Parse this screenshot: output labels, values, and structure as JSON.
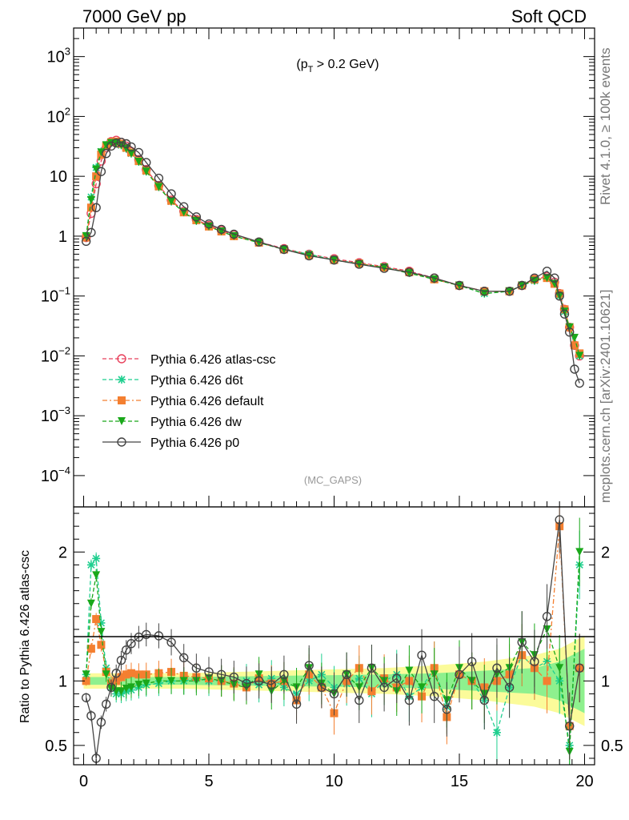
{
  "header": {
    "left_title": "7000 GeV pp",
    "right_title": "Soft QCD"
  },
  "side_labels": {
    "top": "Rivet 4.1.0, ≥ 100k events",
    "bottom": "mcplots.cern.ch [arXiv:2401.10621]"
  },
  "colors": {
    "atlas-csc": "#e8415c",
    "d6t": "#1fcf8f",
    "default": "#f47f30",
    "dw": "#1aa81a",
    "p0": "#444444",
    "band_yellow": "#fbfb9a",
    "band_green": "#8ef08e"
  },
  "chart_data": [
    {
      "type": "line",
      "panel": "main",
      "annotation": "(p_T > 0.2 GeV)",
      "annotation_parts": {
        "pre": "(p",
        "sub": "T",
        "post": " > 0.2 GeV)"
      },
      "watermark": "(MC_GAPS)",
      "yscale": "log",
      "xlim": [
        -0.4,
        20.4
      ],
      "ylim": [
        3e-05,
        3000
      ],
      "y_ticks": [
        {
          "v": 1000,
          "base": "10",
          "exp": "3"
        },
        {
          "v": 100,
          "base": "10",
          "exp": "2"
        },
        {
          "v": 10,
          "base": "10",
          "exp": ""
        },
        {
          "v": 1,
          "base": "1",
          "exp": ""
        },
        {
          "v": 0.1,
          "base": "10",
          "exp": "−1"
        },
        {
          "v": 0.01,
          "base": "10",
          "exp": "−2"
        },
        {
          "v": 0.001,
          "base": "10",
          "exp": "−3"
        },
        {
          "v": 0.0001,
          "base": "10",
          "exp": "−4"
        }
      ],
      "legend_position": "lower-left",
      "series": [
        {
          "name": "Pythia 6.426 atlas-csc",
          "key": "atlas-csc",
          "marker": "open-circle",
          "line": "dashed",
          "x": [
            0.1,
            0.3,
            0.5,
            0.7,
            0.9,
            1.1,
            1.3,
            1.5,
            1.7,
            1.9,
            2.2,
            2.5,
            3.0,
            3.5,
            4.0,
            4.5,
            5.0,
            5.5,
            6.0,
            7.0,
            8.0,
            9.0,
            10.0,
            11.0,
            12.0,
            13.0,
            14.0,
            15.0,
            16.0,
            17.0,
            17.5,
            18.0,
            18.5,
            18.8,
            19.0,
            19.2,
            19.4,
            19.6,
            19.8
          ],
          "y": [
            0.95,
            2.4,
            7.5,
            18,
            30,
            38,
            40,
            37,
            32,
            26,
            19,
            13,
            7.0,
            4.0,
            2.6,
            1.9,
            1.5,
            1.25,
            1.05,
            0.8,
            0.62,
            0.5,
            0.42,
            0.36,
            0.31,
            0.26,
            0.2,
            0.15,
            0.12,
            0.12,
            0.15,
            0.19,
            0.21,
            0.17,
            0.11,
            0.06,
            0.03,
            0.015,
            0.01
          ]
        },
        {
          "name": "Pythia 6.426 d6t",
          "key": "d6t",
          "marker": "star",
          "line": "dashed",
          "x": [
            0.1,
            0.3,
            0.5,
            0.7,
            0.9,
            1.1,
            1.3,
            1.5,
            1.7,
            1.9,
            2.2,
            2.5,
            3.0,
            3.5,
            4.0,
            4.5,
            5.0,
            5.5,
            6.0,
            7.0,
            8.0,
            9.0,
            10.0,
            11.0,
            12.0,
            13.0,
            14.0,
            15.0,
            16.0,
            17.0,
            17.5,
            18.0,
            18.5,
            18.8,
            19.0,
            19.2,
            19.4,
            19.6,
            19.8
          ],
          "y": [
            1.0,
            4.5,
            14,
            26,
            33,
            36,
            36,
            33,
            29,
            24,
            17.5,
            12,
            6.6,
            3.8,
            2.5,
            1.8,
            1.45,
            1.2,
            1.0,
            0.78,
            0.6,
            0.5,
            0.4,
            0.35,
            0.3,
            0.25,
            0.19,
            0.15,
            0.11,
            0.12,
            0.15,
            0.18,
            0.2,
            0.16,
            0.1,
            0.055,
            0.03,
            0.015,
            0.01
          ]
        },
        {
          "name": "Pythia 6.426 default",
          "key": "default",
          "marker": "filled-square",
          "line": "dashdot",
          "x": [
            0.1,
            0.3,
            0.5,
            0.7,
            0.9,
            1.1,
            1.3,
            1.5,
            1.7,
            1.9,
            2.2,
            2.5,
            3.0,
            3.5,
            4.0,
            4.5,
            5.0,
            5.5,
            6.0,
            7.0,
            8.0,
            9.0,
            10.0,
            11.0,
            12.0,
            13.0,
            14.0,
            15.0,
            16.0,
            17.0,
            17.5,
            18.0,
            18.5,
            18.8,
            19.0,
            19.2,
            19.4,
            19.6,
            19.8
          ],
          "y": [
            0.95,
            3.0,
            10,
            23,
            32,
            37,
            38,
            35,
            30,
            25,
            18,
            12.5,
            6.8,
            3.9,
            2.5,
            1.85,
            1.45,
            1.2,
            1.0,
            0.78,
            0.6,
            0.48,
            0.4,
            0.35,
            0.3,
            0.25,
            0.19,
            0.15,
            0.12,
            0.12,
            0.15,
            0.19,
            0.2,
            0.16,
            0.11,
            0.06,
            0.03,
            0.015,
            0.011
          ]
        },
        {
          "name": "Pythia 6.426 dw",
          "key": "dw",
          "marker": "filled-triangle-down",
          "line": "dashed",
          "x": [
            0.1,
            0.3,
            0.5,
            0.7,
            0.9,
            1.1,
            1.3,
            1.5,
            1.7,
            1.9,
            2.2,
            2.5,
            3.0,
            3.5,
            4.0,
            4.5,
            5.0,
            5.5,
            6.0,
            7.0,
            8.0,
            9.0,
            10.0,
            11.0,
            12.0,
            13.0,
            14.0,
            15.0,
            16.0,
            17.0,
            17.5,
            18.0,
            18.5,
            18.8,
            19.0,
            19.2,
            19.4,
            19.6,
            19.8
          ],
          "y": [
            1.0,
            4.0,
            13,
            25,
            33,
            36,
            36,
            33,
            29,
            24,
            17.5,
            12,
            6.6,
            3.8,
            2.5,
            1.8,
            1.45,
            1.2,
            1.0,
            0.78,
            0.6,
            0.48,
            0.4,
            0.34,
            0.3,
            0.24,
            0.19,
            0.15,
            0.11,
            0.12,
            0.15,
            0.18,
            0.2,
            0.16,
            0.1,
            0.055,
            0.03,
            0.02,
            0.01
          ]
        },
        {
          "name": "Pythia 6.426 p0",
          "key": "p0",
          "marker": "open-circle",
          "line": "solid",
          "x": [
            0.1,
            0.3,
            0.5,
            0.7,
            0.9,
            1.1,
            1.3,
            1.5,
            1.7,
            1.9,
            2.2,
            2.5,
            3.0,
            3.5,
            4.0,
            4.5,
            5.0,
            5.5,
            6.0,
            7.0,
            8.0,
            9.0,
            10.0,
            11.0,
            12.0,
            13.0,
            14.0,
            15.0,
            16.0,
            17.0,
            17.5,
            18.0,
            18.5,
            18.8,
            19.0,
            19.2,
            19.4,
            19.6,
            19.8
          ],
          "y": [
            0.82,
            1.15,
            3.0,
            12,
            24,
            32,
            36,
            37,
            35,
            31,
            25,
            17,
            9.3,
            5.1,
            3.1,
            2.1,
            1.6,
            1.3,
            1.08,
            0.8,
            0.6,
            0.47,
            0.4,
            0.34,
            0.29,
            0.25,
            0.2,
            0.15,
            0.12,
            0.12,
            0.15,
            0.2,
            0.26,
            0.2,
            0.1,
            0.05,
            0.025,
            0.006,
            0.0035
          ]
        }
      ]
    },
    {
      "type": "line",
      "panel": "ratio",
      "ylabel": "Ratio to Pythia 6.426 atlas-csc",
      "xlim": [
        -0.4,
        20.4
      ],
      "ylim": [
        0.35,
        2.35
      ],
      "y_ticks": [
        "0.5",
        "1",
        "2"
      ],
      "y_tick_values": [
        0.5,
        1,
        2
      ],
      "x_ticks": [
        "0",
        "5",
        "10",
        "15",
        "20"
      ],
      "x_tick_values": [
        0,
        5,
        10,
        15,
        20
      ],
      "band_yellow_halfwidth": [
        0.06,
        0.06,
        0.06,
        0.07,
        0.08,
        0.09,
        0.1,
        0.12,
        0.15,
        0.2,
        0.25,
        0.35
      ],
      "band_green_halfwidth": [
        0.03,
        0.03,
        0.03,
        0.035,
        0.04,
        0.045,
        0.05,
        0.06,
        0.08,
        0.1,
        0.15,
        0.25
      ],
      "band_x": [
        0,
        2,
        4,
        6,
        8,
        10,
        12,
        14,
        16,
        18,
        19,
        20
      ],
      "series": [
        {
          "key": "d6t",
          "x": [
            0.1,
            0.3,
            0.5,
            0.7,
            0.9,
            1.1,
            1.3,
            1.5,
            1.7,
            1.9,
            2.2,
            2.5,
            3.0,
            3.5,
            4.0,
            4.5,
            5.0,
            5.5,
            6.0,
            6.5,
            7.0,
            7.5,
            8.0,
            8.5,
            9.0,
            9.5,
            10.0,
            10.5,
            11.0,
            11.5,
            12.0,
            12.5,
            13.0,
            13.5,
            14.0,
            14.5,
            15.0,
            15.5,
            16.0,
            16.5,
            17.0,
            17.5,
            18.0,
            18.5,
            19.0,
            19.4,
            19.8
          ],
          "y": [
            1.05,
            1.9,
            1.95,
            1.45,
            1.1,
            0.95,
            0.9,
            0.9,
            0.92,
            0.93,
            0.95,
            0.97,
            0.98,
            1.0,
            1.0,
            1.02,
            1.0,
            1.0,
            0.98,
            1.0,
            0.97,
            1.02,
            0.95,
            0.9,
            1.0,
            1.05,
            0.95,
            0.98,
            1.02,
            0.9,
            1.0,
            1.05,
            0.88,
            0.95,
            1.1,
            0.8,
            1.05,
            1.0,
            0.85,
            0.6,
            0.95,
            1.2,
            1.1,
            1.15,
            1.0,
            0.5,
            1.9
          ]
        },
        {
          "key": "default",
          "x": [
            0.1,
            0.3,
            0.5,
            0.7,
            0.9,
            1.1,
            1.3,
            1.5,
            1.7,
            1.9,
            2.2,
            2.5,
            3.0,
            3.5,
            4.0,
            4.5,
            5.0,
            5.5,
            6.0,
            6.5,
            7.0,
            7.5,
            8.0,
            8.5,
            9.0,
            9.5,
            10.0,
            10.5,
            11.0,
            11.5,
            12.0,
            12.5,
            13.0,
            13.5,
            14.0,
            14.5,
            15.0,
            15.5,
            16.0,
            16.5,
            17.0,
            17.5,
            18.0,
            18.5,
            19.0,
            19.4,
            19.8
          ],
          "y": [
            1.0,
            1.25,
            1.48,
            1.28,
            1.07,
            0.98,
            1.0,
            1.03,
            1.05,
            1.06,
            1.05,
            1.05,
            1.06,
            1.07,
            1.04,
            1.03,
            1.02,
            1.0,
            0.98,
            0.95,
            1.02,
            0.98,
            1.0,
            0.85,
            1.05,
            0.95,
            0.75,
            1.0,
            1.1,
            0.92,
            1.02,
            0.95,
            1.0,
            0.88,
            1.1,
            0.72,
            1.05,
            1.0,
            0.95,
            1.0,
            1.05,
            1.2,
            1.1,
            1.0,
            2.2,
            0.65,
            1.1
          ]
        },
        {
          "key": "dw",
          "x": [
            0.1,
            0.3,
            0.5,
            0.7,
            0.9,
            1.1,
            1.3,
            1.5,
            1.7,
            1.9,
            2.2,
            2.5,
            3.0,
            3.5,
            4.0,
            4.5,
            5.0,
            5.5,
            6.0,
            6.5,
            7.0,
            7.5,
            8.0,
            8.5,
            9.0,
            9.5,
            10.0,
            10.5,
            11.0,
            11.5,
            12.0,
            12.5,
            13.0,
            13.5,
            14.0,
            14.5,
            15.0,
            15.5,
            16.0,
            16.5,
            17.0,
            17.5,
            18.0,
            18.5,
            19.0,
            19.4,
            19.8
          ],
          "y": [
            1.05,
            1.6,
            1.82,
            1.38,
            1.05,
            0.94,
            0.92,
            0.92,
            0.94,
            0.95,
            0.97,
            0.98,
            1.0,
            1.0,
            1.0,
            1.0,
            1.02,
            1.0,
            0.97,
            0.95,
            1.05,
            0.92,
            1.0,
            0.95,
            1.1,
            0.98,
            0.9,
            1.05,
            0.95,
            1.1,
            1.0,
            0.92,
            1.08,
            0.95,
            1.05,
            0.85,
            1.1,
            1.0,
            0.9,
            1.05,
            1.1,
            1.3,
            1.2,
            1.4,
            1.1,
            0.45,
            2.0
          ]
        },
        {
          "key": "p0",
          "x": [
            0.1,
            0.3,
            0.5,
            0.7,
            0.9,
            1.1,
            1.3,
            1.5,
            1.7,
            1.9,
            2.2,
            2.5,
            3.0,
            3.5,
            4.0,
            4.5,
            5.0,
            5.5,
            6.0,
            6.5,
            7.0,
            7.5,
            8.0,
            8.5,
            9.0,
            9.5,
            10.0,
            10.5,
            11.0,
            11.5,
            12.0,
            12.5,
            13.0,
            13.5,
            14.0,
            14.5,
            15.0,
            15.5,
            16.0,
            16.5,
            17.0,
            17.5,
            18.0,
            18.5,
            19.0,
            19.4,
            19.8
          ],
          "y": [
            0.87,
            0.73,
            0.4,
            0.68,
            0.82,
            0.95,
            1.06,
            1.16,
            1.24,
            1.29,
            1.34,
            1.36,
            1.35,
            1.3,
            1.18,
            1.1,
            1.07,
            1.05,
            1.03,
            0.98,
            1.0,
            0.97,
            1.05,
            0.82,
            1.12,
            0.95,
            0.9,
            1.05,
            0.85,
            1.1,
            0.95,
            1.02,
            0.85,
            1.2,
            0.88,
            0.78,
            1.05,
            1.15,
            0.85,
            1.1,
            0.95,
            1.3,
            1.15,
            1.5,
            2.25,
            0.65,
            1.1
          ]
        }
      ]
    }
  ],
  "legend": [
    {
      "label": "Pythia 6.426 atlas-csc",
      "key": "atlas-csc"
    },
    {
      "label": "Pythia 6.426 d6t",
      "key": "d6t"
    },
    {
      "label": "Pythia 6.426 default",
      "key": "default"
    },
    {
      "label": "Pythia 6.426 dw",
      "key": "dw"
    },
    {
      "label": "Pythia 6.426 p0",
      "key": "p0"
    }
  ]
}
